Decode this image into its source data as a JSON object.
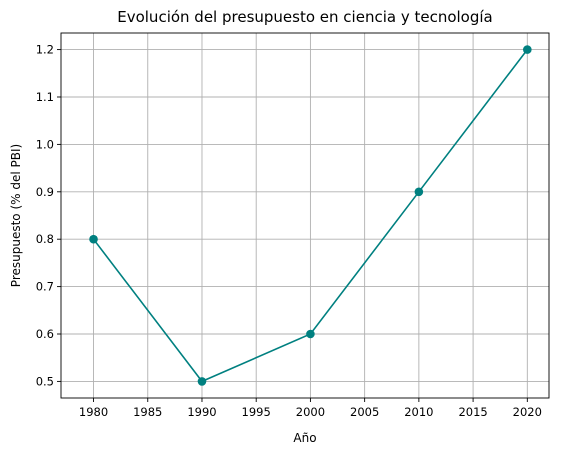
{
  "chart_data": {
    "type": "line",
    "title": "Evolución del presupuesto en ciencia y tecnología",
    "xlabel": "Año",
    "ylabel": "Presupuesto (% del PBI)",
    "x": [
      1980,
      1990,
      2000,
      2010,
      2020
    ],
    "series": [
      {
        "values": [
          0.8,
          0.5,
          0.6,
          0.9,
          1.2
        ]
      }
    ],
    "color": "#008080",
    "marker": "circle",
    "xlim": [
      1977,
      2022
    ],
    "ylim": [
      0.465,
      1.235
    ],
    "xticks": [
      1980,
      1985,
      1990,
      1995,
      2000,
      2005,
      2010,
      2015,
      2020
    ],
    "yticks": [
      0.5,
      0.6,
      0.7,
      0.8,
      0.9,
      1.0,
      1.1,
      1.2
    ],
    "ytick_labels": [
      "0.5",
      "0.6",
      "0.7",
      "0.8",
      "0.9",
      "1.0",
      "1.1",
      "1.2"
    ],
    "grid": true,
    "legend": false
  }
}
